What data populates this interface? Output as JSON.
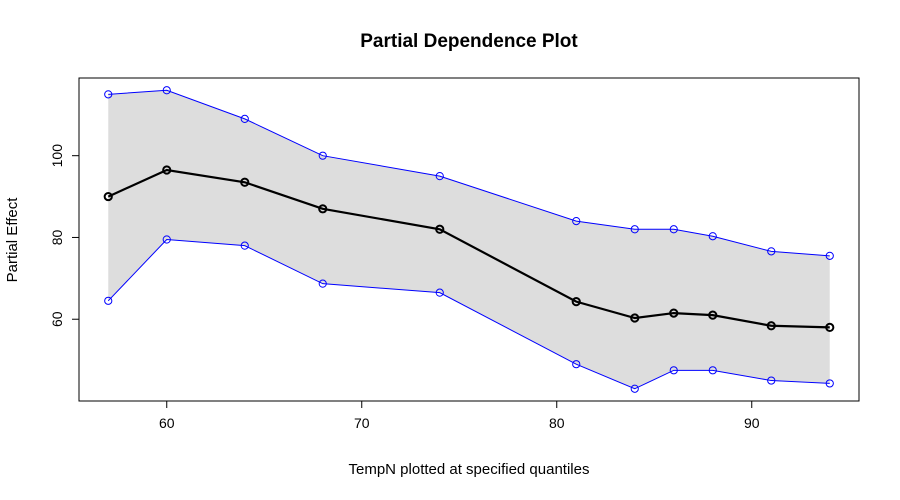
{
  "chart_data": {
    "type": "line",
    "title": "Partial Dependence Plot",
    "xlabel": "TempN plotted at specified quantiles",
    "ylabel": "Partial Effect",
    "xlim": [
      55.5,
      95.5
    ],
    "ylim": [
      40,
      119
    ],
    "x_ticks": [
      60,
      70,
      80,
      90
    ],
    "y_ticks": [
      60,
      80,
      100
    ],
    "x": [
      57,
      60,
      64,
      68,
      74,
      81,
      84,
      86,
      88,
      91,
      94
    ],
    "series": [
      {
        "role": "estimate",
        "color": "#000000",
        "values": [
          90,
          96.5,
          93.5,
          87,
          82,
          64.3,
          60.3,
          61.5,
          61,
          58.4,
          58
        ]
      },
      {
        "role": "upper",
        "color": "#0000ff",
        "values": [
          115,
          116,
          109,
          100,
          95,
          84,
          82,
          82,
          80.3,
          76.6,
          75.5
        ]
      },
      {
        "role": "lower",
        "color": "#0000ff",
        "values": [
          64.5,
          79.5,
          78,
          68.7,
          66.5,
          49,
          43,
          47.5,
          47.5,
          45,
          44.3
        ]
      }
    ],
    "band_color": "#dddddd",
    "grid": false,
    "legend": "none"
  }
}
